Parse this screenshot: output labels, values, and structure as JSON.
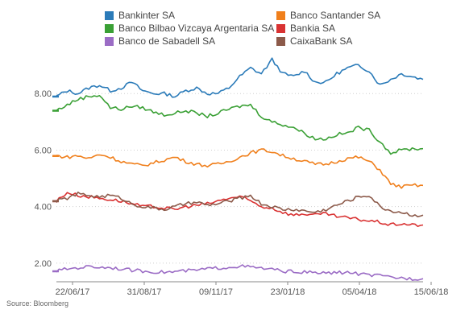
{
  "chart_data": {
    "type": "line",
    "title": "",
    "xlabel": "",
    "ylabel": "",
    "x_tick_labels": [
      "22/06/17",
      "31/08/17",
      "09/11/17",
      "23/01/18",
      "05/04/18",
      "15/06/18"
    ],
    "y_ticks": [
      "2.00",
      "4.00",
      "6.00",
      "8.00"
    ],
    "ylim": [
      1.4,
      9.6
    ],
    "legend": "top",
    "source": "Source: Bloomberg",
    "series": [
      {
        "name": "Bankinter SA",
        "color": "#2b7bb9",
        "values": [
          7.9,
          8.1,
          8.0,
          8.2,
          8.3,
          8.1,
          8.2,
          8.4,
          8.1,
          8.0,
          8.0,
          7.9,
          8.1,
          8.2,
          8.0,
          8.0,
          8.2,
          8.6,
          8.9,
          8.7,
          9.2,
          8.7,
          8.6,
          8.8,
          8.4,
          8.4,
          8.7,
          8.9,
          9.0,
          8.8,
          8.3,
          8.5,
          8.7,
          8.6,
          8.5
        ]
      },
      {
        "name": "Banco Santander SA",
        "color": "#f07f1b",
        "values": [
          5.8,
          5.75,
          5.8,
          5.7,
          5.85,
          5.75,
          5.6,
          5.5,
          5.45,
          5.55,
          5.65,
          5.75,
          5.6,
          5.5,
          5.45,
          5.5,
          5.6,
          5.75,
          5.9,
          6.0,
          5.95,
          5.8,
          5.7,
          5.6,
          5.5,
          5.5,
          5.6,
          5.7,
          5.75,
          5.6,
          5.3,
          4.8,
          4.7,
          4.75,
          4.75
        ]
      },
      {
        "name": "Banco Bilbao Vizcaya Argentaria SA",
        "color": "#3aa035",
        "values": [
          7.4,
          7.6,
          7.8,
          7.9,
          7.95,
          7.5,
          7.45,
          7.55,
          7.5,
          7.35,
          7.25,
          7.3,
          7.4,
          7.3,
          7.2,
          7.3,
          7.45,
          7.55,
          7.6,
          7.2,
          7.0,
          6.9,
          6.8,
          6.6,
          6.4,
          6.4,
          6.55,
          6.6,
          6.8,
          6.7,
          6.3,
          5.9,
          6.0,
          6.05,
          6.05
        ]
      },
      {
        "name": "Bankia SA",
        "color": "#d93232",
        "values": [
          4.2,
          4.5,
          4.4,
          4.35,
          4.3,
          4.25,
          4.2,
          4.1,
          4.0,
          4.0,
          3.95,
          3.9,
          4.0,
          4.05,
          4.1,
          4.2,
          4.3,
          4.35,
          4.2,
          4.0,
          3.95,
          3.8,
          3.7,
          3.75,
          3.7,
          3.75,
          3.65,
          3.6,
          3.55,
          3.5,
          3.45,
          3.35,
          3.4,
          3.35,
          3.35
        ]
      },
      {
        "name": "Banco de Sabadell SA",
        "color": "#9b6cc5",
        "values": [
          1.72,
          1.8,
          1.84,
          1.88,
          1.86,
          1.85,
          1.8,
          1.75,
          1.72,
          1.7,
          1.68,
          1.7,
          1.73,
          1.75,
          1.8,
          1.83,
          1.86,
          1.9,
          1.86,
          1.82,
          1.78,
          1.72,
          1.7,
          1.68,
          1.66,
          1.65,
          1.66,
          1.68,
          1.62,
          1.58,
          1.55,
          1.5,
          1.48,
          1.45,
          1.45
        ]
      },
      {
        "name": "CaixaBank SA",
        "color": "#8c5a4a",
        "values": [
          4.2,
          4.3,
          4.45,
          4.4,
          4.35,
          4.4,
          4.3,
          4.1,
          4.0,
          3.95,
          3.9,
          4.0,
          4.1,
          4.15,
          4.05,
          4.1,
          4.2,
          4.3,
          4.4,
          4.1,
          4.0,
          3.9,
          3.9,
          3.85,
          3.8,
          3.9,
          4.05,
          4.2,
          4.35,
          4.4,
          4.0,
          3.85,
          3.8,
          3.7,
          3.7
        ]
      }
    ]
  }
}
